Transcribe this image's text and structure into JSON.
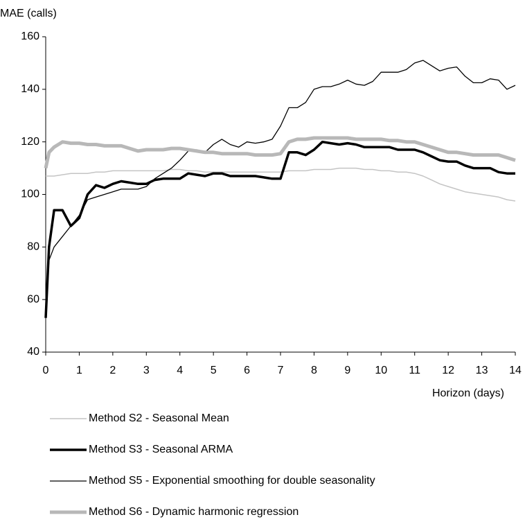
{
  "chart_data": {
    "type": "line",
    "y_label": "MAE (calls)",
    "x_label": "Horizon (days)",
    "x": [
      0,
      0.1,
      0.25,
      0.5,
      0.75,
      1,
      1.25,
      1.5,
      1.75,
      2,
      2.25,
      2.5,
      2.75,
      3,
      3.25,
      3.5,
      3.75,
      4,
      4.25,
      4.5,
      4.75,
      5,
      5.25,
      5.5,
      5.75,
      6,
      6.25,
      6.5,
      6.75,
      7,
      7.25,
      7.5,
      7.75,
      8,
      8.25,
      8.5,
      8.75,
      9,
      9.25,
      9.5,
      9.75,
      10,
      10.25,
      10.5,
      10.75,
      11,
      11.25,
      11.5,
      11.75,
      12,
      12.25,
      12.5,
      12.75,
      13,
      13.25,
      13.5,
      13.75,
      14
    ],
    "series": [
      {
        "name": "Method S2 - Seasonal Mean",
        "color": "#c4c4c4",
        "width": 1.5,
        "values": [
          107,
          107,
          107,
          107.5,
          108,
          108,
          108,
          108.5,
          108.5,
          109,
          109,
          109,
          109,
          109,
          109,
          109,
          109.5,
          109.5,
          109,
          109,
          108.5,
          108.5,
          108.5,
          108.5,
          108.5,
          108.5,
          108.5,
          108.5,
          108.5,
          108.5,
          109,
          109,
          109,
          109.5,
          109.5,
          109.5,
          110,
          110,
          110,
          109.5,
          109.5,
          109,
          109,
          108.5,
          108.5,
          108,
          107,
          105.5,
          104,
          103,
          102,
          101,
          100.5,
          100,
          99.5,
          99,
          98,
          97.5
        ]
      },
      {
        "name": "Method S3 - Seasonal ARMA",
        "color": "#000000",
        "width": 3.5,
        "values": [
          53,
          80,
          94,
          94,
          88,
          91,
          100,
          103.5,
          102.5,
          104,
          105,
          104.5,
          104,
          104,
          105.5,
          106,
          106,
          106,
          108,
          107.5,
          107,
          108,
          108,
          107,
          107,
          107,
          107,
          106.5,
          106,
          106,
          116,
          116,
          115,
          117,
          120,
          119.5,
          119,
          119.5,
          119,
          118,
          118,
          118,
          118,
          117,
          117,
          117,
          116,
          114.5,
          113,
          112.5,
          112.5,
          111,
          110,
          110,
          110,
          108.5,
          108,
          108
        ]
      },
      {
        "name": "Method S5 - Exponential smoothing for double seasonality",
        "color": "#000000",
        "width": 1.3,
        "values": [
          56,
          75,
          80,
          84,
          88,
          92,
          98,
          99,
          100,
          101,
          102,
          102,
          102,
          103,
          106,
          108,
          110,
          113,
          116.5,
          117,
          116,
          119,
          121,
          119,
          118,
          120,
          119.5,
          120,
          121,
          126,
          133,
          133,
          135,
          140,
          141,
          141,
          142,
          143.5,
          142,
          141.5,
          143,
          146.5,
          146.5,
          146.5,
          147.5,
          150,
          151,
          149,
          147,
          148,
          148.5,
          145,
          142.5,
          142.5,
          144,
          143.5,
          140,
          141.5
        ]
      },
      {
        "name": "Method S6 - Dynamic harmonic regression",
        "color": "#b8b8b8",
        "width": 5,
        "values": [
          110,
          116,
          118,
          120,
          119.5,
          119.5,
          119,
          119,
          118.5,
          118.5,
          118.5,
          117.5,
          116.5,
          117,
          117,
          117,
          117.5,
          117.5,
          117,
          116.5,
          116,
          116,
          115.5,
          115.5,
          115.5,
          115.5,
          115,
          115,
          115,
          115.5,
          120,
          121,
          121,
          121.5,
          121.5,
          121.5,
          121.5,
          121.5,
          121,
          121,
          121,
          121,
          120.5,
          120.5,
          120,
          120,
          119,
          118,
          117,
          116,
          116,
          115.5,
          115,
          115,
          115,
          115,
          114,
          113
        ]
      }
    ],
    "xlim": [
      0,
      14
    ],
    "xticks": [
      0,
      1,
      2,
      3,
      4,
      5,
      6,
      7,
      8,
      9,
      10,
      11,
      12,
      13,
      14
    ],
    "ylim": [
      40,
      160
    ],
    "yticks": [
      40,
      60,
      80,
      100,
      120,
      140,
      160
    ],
    "grid": false
  }
}
